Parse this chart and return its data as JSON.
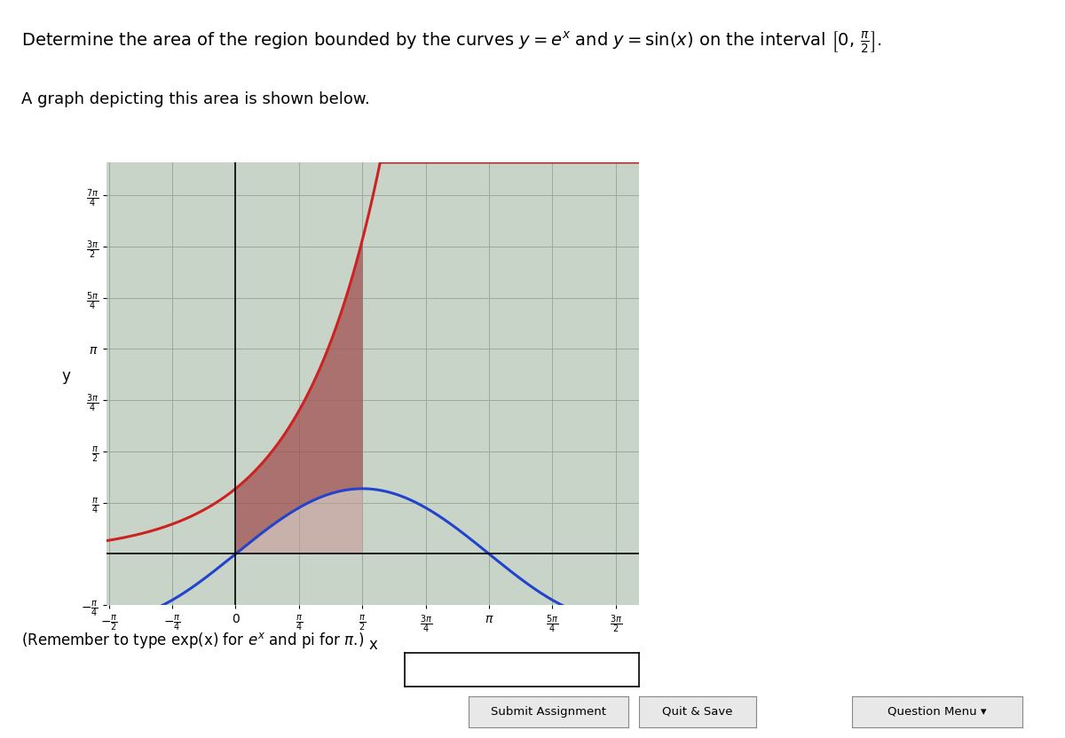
{
  "title_line1": "Determine the area of the region bounded by the curves $y = e^x$ and $y = \\sin(x)$ on the interval $[0, \\frac{\\pi}{2}]$.",
  "subtitle": "A graph depicting this area is shown below.",
  "xlabel": "x",
  "ylabel": "y",
  "x_min": -1.6,
  "x_max": 5.0,
  "y_min": -0.5,
  "y_max": 6.0,
  "plot_bg_color": "#c8d4c8",
  "grid_color": "#9aaa9a",
  "exp_color": "#cc2222",
  "sin_color": "#2244cc",
  "fill_color_above": "#a05050",
  "fill_color_below": "#c89898",
  "fill_alpha_above": 0.75,
  "fill_alpha_below": 0.6,
  "interval_start": 0.0,
  "interval_end": 1.5707963267948966
}
